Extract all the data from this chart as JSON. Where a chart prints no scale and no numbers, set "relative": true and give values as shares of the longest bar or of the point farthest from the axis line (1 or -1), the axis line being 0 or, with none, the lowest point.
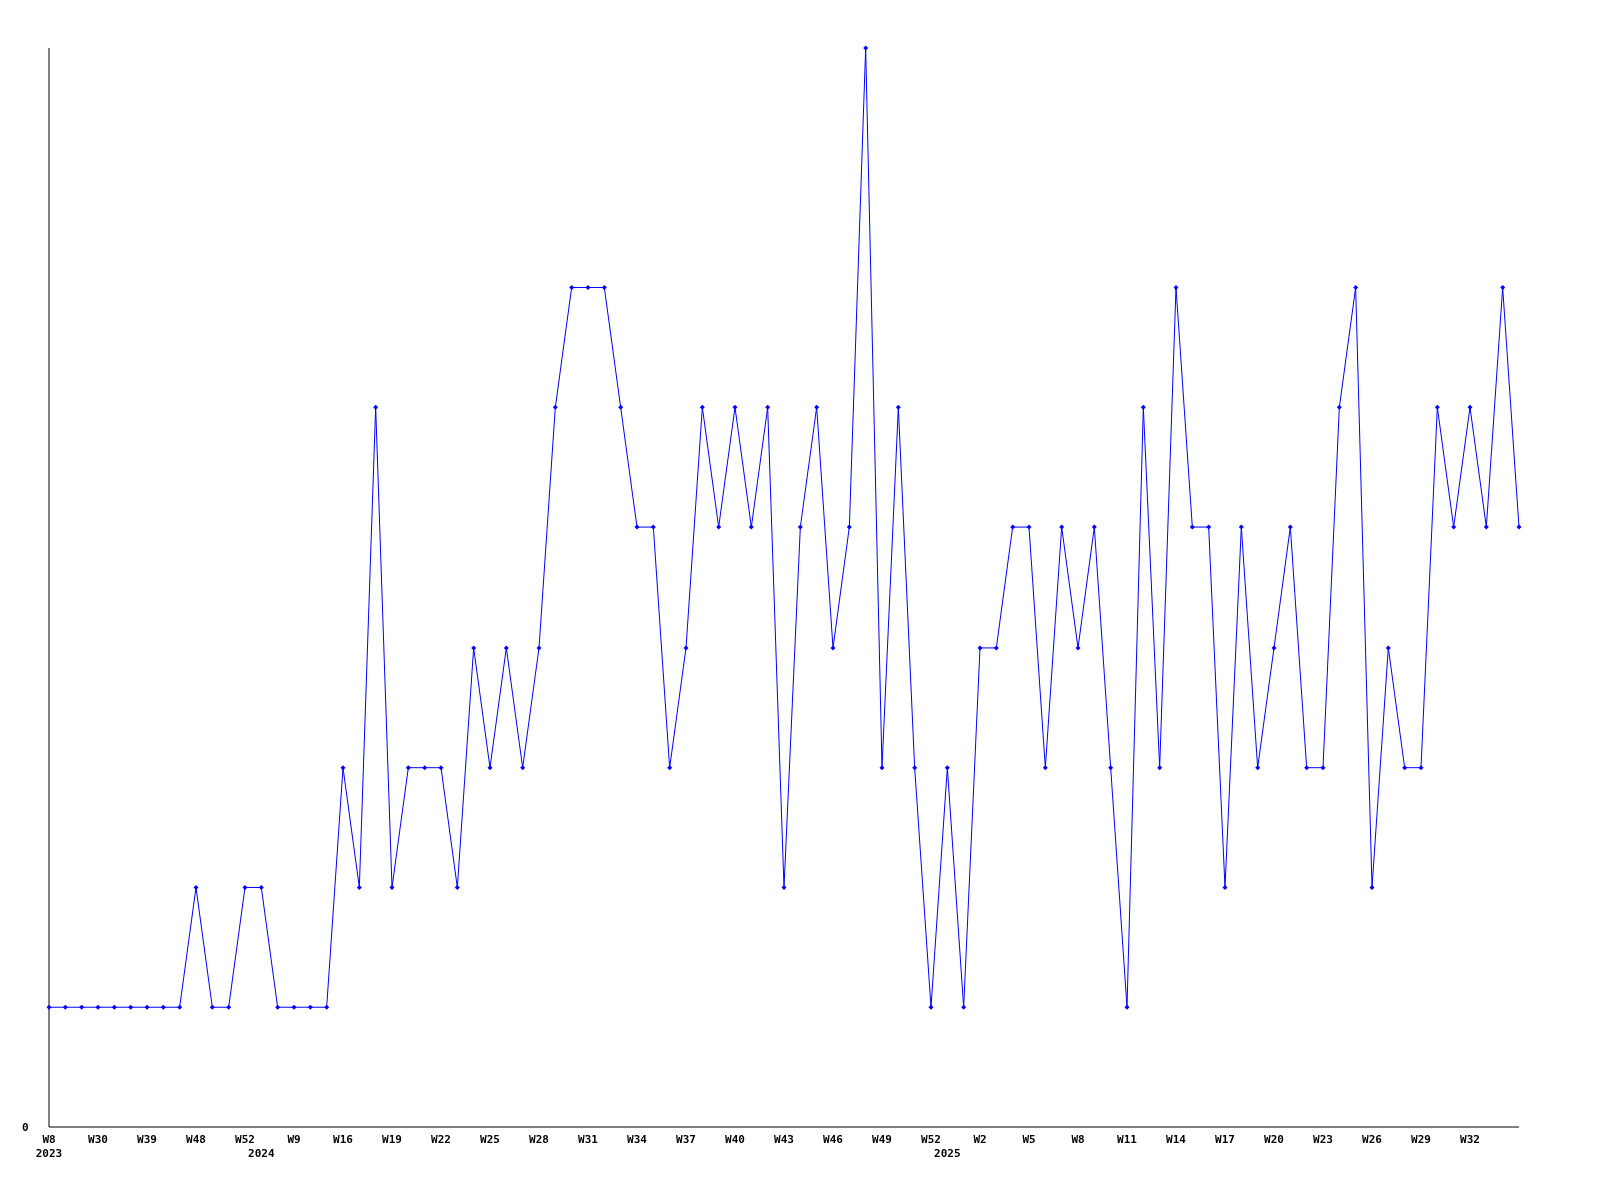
{
  "chart_data": {
    "type": "line",
    "relative": true,
    "marker": "diamond",
    "categories": [
      "W8\n2023",
      null,
      null,
      "W30",
      null,
      null,
      "W39",
      null,
      null,
      "W48",
      null,
      null,
      "W52",
      "\n2024",
      null,
      "W9",
      null,
      null,
      "W16",
      null,
      null,
      "W19",
      null,
      null,
      "W22",
      null,
      null,
      "W25",
      null,
      null,
      "W28",
      null,
      null,
      "W31",
      null,
      null,
      "W34",
      null,
      null,
      "W37",
      null,
      null,
      "W40",
      null,
      null,
      "W43",
      null,
      null,
      "W46",
      null,
      null,
      "W49",
      null,
      null,
      "W52",
      "\n2025",
      null,
      "W2",
      null,
      null,
      "W5",
      null,
      null,
      "W8",
      null,
      null,
      "W11",
      null,
      null,
      "W14",
      null,
      null,
      "W17",
      null,
      null,
      "W20",
      null,
      null,
      "W23",
      null,
      null,
      "W26",
      null,
      null,
      "W29",
      null,
      null,
      "W32",
      null,
      null,
      null
    ],
    "series": [
      {
        "color": "#0000ff",
        "values": [
          0.111,
          0.111,
          0.111,
          0.111,
          0.111,
          0.111,
          0.111,
          0.111,
          0.111,
          0.222,
          0.111,
          0.111,
          0.222,
          0.222,
          0.111,
          0.111,
          0.111,
          0.111,
          0.333,
          0.222,
          0.667,
          0.222,
          0.333,
          0.333,
          0.333,
          0.222,
          0.444,
          0.333,
          0.444,
          0.333,
          0.444,
          0.667,
          0.778,
          0.778,
          0.778,
          0.667,
          0.556,
          0.556,
          0.333,
          0.444,
          0.667,
          0.556,
          0.667,
          0.556,
          0.667,
          0.222,
          0.556,
          0.667,
          0.444,
          0.556,
          1,
          0.333,
          0.667,
          0.333,
          0.111,
          0.333,
          0.111,
          0.444,
          0.444,
          0.556,
          0.556,
          0.333,
          0.556,
          0.444,
          0.556,
          0.333,
          0.111,
          0.667,
          0.333,
          0.778,
          0.556,
          0.556,
          0.222,
          0.556,
          0.333,
          0.444,
          0.556,
          0.333,
          0.333,
          0.667,
          0.778,
          0.222,
          0.444,
          0.333,
          0.333,
          0.667,
          0.556,
          0.667,
          0.556,
          0.778,
          0.556
        ]
      }
    ],
    "annotations": [
      "0"
    ]
  }
}
